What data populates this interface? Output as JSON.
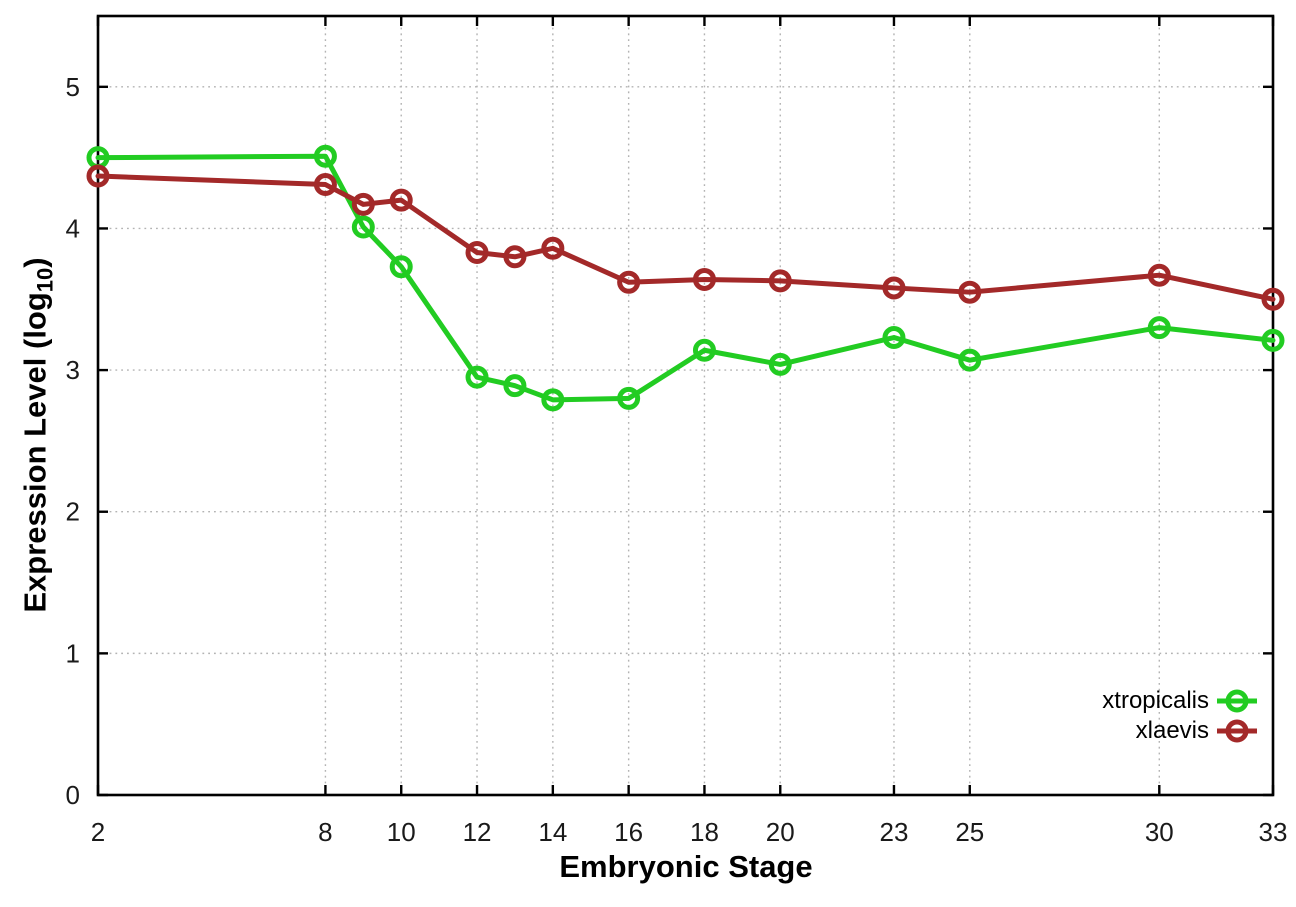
{
  "figure": {
    "background": "#ffffff",
    "border_color": "#000000",
    "grid_color": "#b3b3b3",
    "tick_label_color": "#1a1a1a"
  },
  "chart_data": {
    "type": "line",
    "title": "",
    "xlabel": "Embryonic Stage",
    "ylabel": "Expression Level (log10)",
    "ylabel_parts": {
      "main": "Expression Level (log",
      "sub": "10",
      "close": ")"
    },
    "x": [
      2,
      8,
      9,
      10,
      12,
      13,
      14,
      16,
      18,
      20,
      23,
      25,
      30,
      33
    ],
    "xlim": [
      2,
      33
    ],
    "ylim": [
      0,
      5.5
    ],
    "xticks": [
      2,
      8,
      10,
      12,
      14,
      16,
      18,
      20,
      23,
      25,
      30,
      33
    ],
    "yticks": [
      0,
      1,
      2,
      3,
      4,
      5
    ],
    "grid": true,
    "legend": {
      "position": "inside-right",
      "border": false
    },
    "series": [
      {
        "name": "xtropicalis",
        "color": "#22cc22",
        "marker": "open-circle",
        "values": [
          4.5,
          4.51,
          4.01,
          3.73,
          2.95,
          2.89,
          2.79,
          2.8,
          3.14,
          3.04,
          3.23,
          3.07,
          3.3,
          3.21
        ]
      },
      {
        "name": "xlaevis",
        "color": "#a32929",
        "marker": "open-circle",
        "values": [
          4.37,
          4.31,
          4.17,
          4.2,
          3.83,
          3.8,
          3.86,
          3.62,
          3.64,
          3.63,
          3.58,
          3.55,
          3.67,
          3.5
        ]
      }
    ]
  }
}
